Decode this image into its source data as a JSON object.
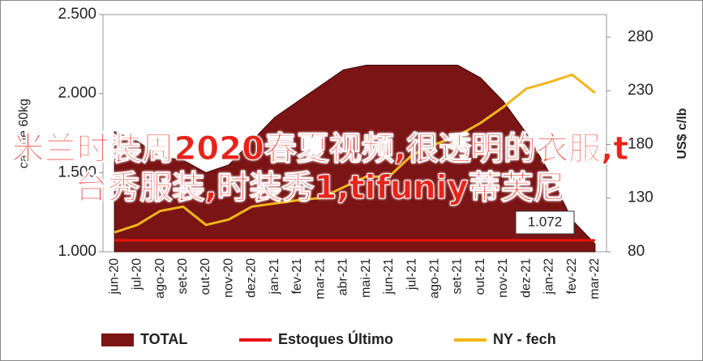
{
  "chart_data": {
    "type": "area-line",
    "y_label": "cas de 60kg",
    "y2_label": "US$ c/lb",
    "categories": [
      "jun-20",
      "jul-20",
      "ago-20",
      "set-20",
      "out-20",
      "nov-20",
      "dez-20",
      "jan-21",
      "fev-21",
      "mar-21",
      "abr-21",
      "mai-21",
      "jun-21",
      "jul-21",
      "ago-21",
      "set-21",
      "out-21",
      "nov-21",
      "dez-21",
      "jan-22",
      "fev-22",
      "mar-22"
    ],
    "ylim": [
      1.0,
      2.5
    ],
    "yticks": [
      {
        "value": 1.0,
        "label": "1.000"
      },
      {
        "value": 1.5,
        "label": "1.500"
      },
      {
        "value": 2.0,
        "label": "2.000"
      },
      {
        "value": 2.5,
        "label": "2.500"
      }
    ],
    "y2lim": [
      80,
      301
    ],
    "y2ticks": [
      80,
      130,
      180,
      230,
      280
    ],
    "series": [
      {
        "name": "TOTAL",
        "kind": "area",
        "color": "#7b1414",
        "values": [
          1.76,
          1.7,
          1.6,
          1.58,
          1.5,
          1.55,
          1.7,
          1.85,
          1.95,
          2.05,
          2.15,
          2.18,
          2.18,
          2.18,
          2.18,
          2.18,
          2.1,
          1.95,
          1.75,
          1.5,
          1.2,
          1.05
        ]
      },
      {
        "name": "Estoques Último",
        "kind": "line",
        "color": "#e8130f",
        "values": [
          1.072,
          1.072,
          1.072,
          1.072,
          1.072,
          1.072,
          1.072,
          1.072,
          1.072,
          1.072,
          1.072,
          1.072,
          1.072,
          1.072,
          1.072,
          1.072,
          1.072,
          1.072,
          1.072,
          1.072,
          1.072,
          1.072
        ]
      },
      {
        "name": "NY - fech",
        "kind": "line",
        "axis": "y2",
        "color": "#f2b51b",
        "values": [
          98,
          105,
          118,
          122,
          105,
          110,
          122,
          125,
          128,
          130,
          140,
          150,
          150,
          170,
          180,
          188,
          200,
          215,
          232,
          238,
          245,
          228
        ]
      }
    ],
    "annotation": "1.072",
    "overlay_text": "米兰时装周2020春夏视频,很透明的衣服,t台秀服装,时装秀1,tifuniy蒂芙尼"
  }
}
